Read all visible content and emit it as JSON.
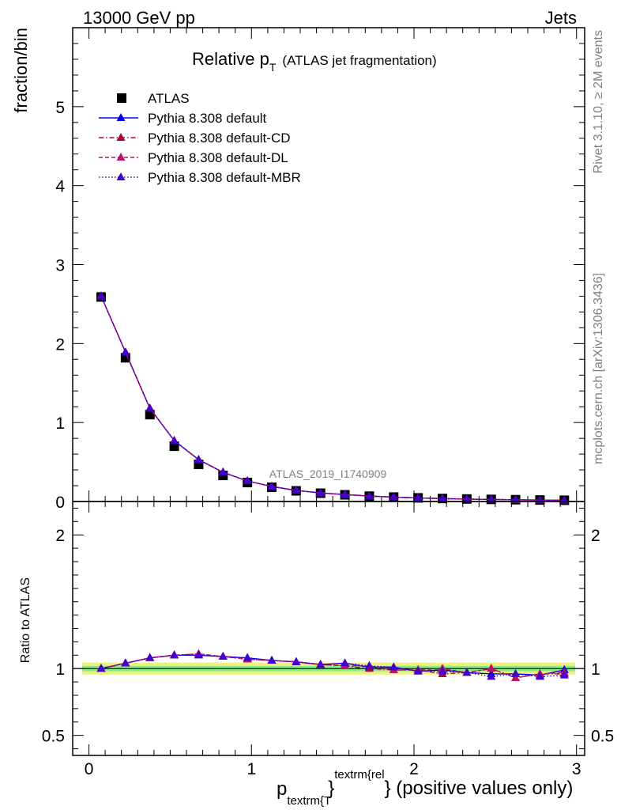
{
  "header": {
    "energy": "13000 GeV pp",
    "process": "Jets"
  },
  "side_texts": {
    "version": "Rivet 3.1.10, ≥ 2M events",
    "source": "mcplots.cern.ch [arXiv:1306.3436]"
  },
  "watermark": "ATLAS_2019_I1740909",
  "chart_data": [
    {
      "type": "line",
      "title": "Relative p",
      "title_sub": "T",
      "title_extra": "(ATLAS jet fragmentation)",
      "ylabel": "fraction/bin",
      "xlim": [
        -0.1,
        3.05
      ],
      "ylim": [
        0,
        6
      ],
      "yticks": [
        0,
        1,
        2,
        3,
        4,
        5
      ],
      "ytick_labels": [
        "0",
        "1",
        "2",
        "3",
        "4",
        "5"
      ],
      "grid": false,
      "legend_position": "top-left",
      "x": [
        0.075,
        0.225,
        0.375,
        0.525,
        0.675,
        0.825,
        0.975,
        1.125,
        1.275,
        1.425,
        1.575,
        1.725,
        1.875,
        2.025,
        2.175,
        2.325,
        2.475,
        2.625,
        2.775,
        2.925
      ],
      "series": [
        {
          "name": "ATLAS",
          "style": "data",
          "color": "#000000",
          "values": [
            2.59,
            1.82,
            1.1,
            0.7,
            0.47,
            0.33,
            0.24,
            0.18,
            0.135,
            0.105,
            0.085,
            0.068,
            0.056,
            0.046,
            0.038,
            0.032,
            0.027,
            0.023,
            0.019,
            0.016
          ]
        },
        {
          "name": "Pythia 8.308 default",
          "style": "solid",
          "color": "#0000ee",
          "values": [
            2.6,
            1.89,
            1.18,
            0.77,
            0.53,
            0.37,
            0.26,
            0.19,
            0.14,
            0.108,
            0.088,
            0.069,
            0.056,
            0.045,
            0.037,
            0.031,
            0.026,
            0.022,
            0.018,
            0.016
          ]
        },
        {
          "name": "Pythia 8.308 default-CD",
          "style": "dashdot",
          "color": "#aa0044",
          "values": [
            2.6,
            1.89,
            1.18,
            0.77,
            0.53,
            0.37,
            0.26,
            0.19,
            0.14,
            0.108,
            0.088,
            0.068,
            0.055,
            0.045,
            0.037,
            0.031,
            0.026,
            0.021,
            0.018,
            0.015
          ]
        },
        {
          "name": "Pythia 8.308 default-DL",
          "style": "dashed",
          "color": "#bb1166",
          "values": [
            2.6,
            1.89,
            1.18,
            0.77,
            0.53,
            0.37,
            0.26,
            0.19,
            0.14,
            0.108,
            0.088,
            0.068,
            0.055,
            0.045,
            0.037,
            0.031,
            0.026,
            0.021,
            0.018,
            0.015
          ]
        },
        {
          "name": "Pythia 8.308 default-MBR",
          "style": "dotted",
          "color": "#4400cc",
          "values": [
            2.6,
            1.89,
            1.18,
            0.77,
            0.53,
            0.37,
            0.26,
            0.19,
            0.14,
            0.108,
            0.088,
            0.069,
            0.056,
            0.045,
            0.037,
            0.031,
            0.026,
            0.022,
            0.018,
            0.016
          ]
        }
      ]
    },
    {
      "type": "line",
      "ylabel": "Ratio to ATLAS",
      "xlabel_main": "p",
      "xlabel_sub": "textrm{T",
      "xlabel_sup": "textrm{rel",
      "xlabel_tail": "} (positive values only)",
      "xlim": [
        -0.1,
        3.05
      ],
      "ylim": [
        0.35,
        2.25
      ],
      "xticks": [
        0,
        1,
        2,
        3
      ],
      "xtick_labels": [
        "0",
        "1",
        "2",
        "3"
      ],
      "yticks": [
        0.5,
        1,
        2
      ],
      "ytick_labels": [
        "0.5",
        "1",
        "2"
      ],
      "band": {
        "inner_color": "#88ee88",
        "outer_color": "#f0f080",
        "inner": 0.02,
        "outer": 0.045
      },
      "x": [
        0.075,
        0.225,
        0.375,
        0.525,
        0.675,
        0.825,
        0.975,
        1.125,
        1.275,
        1.425,
        1.575,
        1.725,
        1.875,
        2.025,
        2.175,
        2.325,
        2.475,
        2.625,
        2.775,
        2.925
      ],
      "series": [
        {
          "name": "Pythia 8.308 default",
          "style": "solid",
          "color": "#0000ee",
          "values": [
            1.0,
            1.04,
            1.08,
            1.1,
            1.1,
            1.09,
            1.08,
            1.06,
            1.05,
            1.03,
            1.04,
            1.01,
            1.01,
            0.98,
            0.99,
            0.97,
            0.96,
            0.96,
            0.95,
            0.99
          ]
        },
        {
          "name": "Pythia 8.308 default-CD",
          "style": "dashdot",
          "color": "#aa0044",
          "values": [
            1.0,
            1.04,
            1.08,
            1.1,
            1.11,
            1.09,
            1.07,
            1.06,
            1.05,
            1.03,
            1.02,
            1.0,
            0.99,
            0.99,
            0.96,
            0.97,
            1.0,
            0.93,
            0.96,
            0.96
          ]
        },
        {
          "name": "Pythia 8.308 default-DL",
          "style": "dashed",
          "color": "#bb1166",
          "values": [
            1.0,
            1.04,
            1.08,
            1.1,
            1.11,
            1.09,
            1.07,
            1.06,
            1.05,
            1.03,
            1.02,
            1.02,
            0.99,
            0.99,
            1.0,
            0.97,
            1.0,
            0.93,
            0.96,
            0.97
          ]
        },
        {
          "name": "Pythia 8.308 default-MBR",
          "style": "dotted",
          "color": "#4400cc",
          "values": [
            1.0,
            1.04,
            1.08,
            1.1,
            1.1,
            1.09,
            1.08,
            1.06,
            1.05,
            1.03,
            1.04,
            1.02,
            1.01,
            0.98,
            0.98,
            0.97,
            0.94,
            0.96,
            0.94,
            0.95
          ]
        }
      ]
    }
  ]
}
